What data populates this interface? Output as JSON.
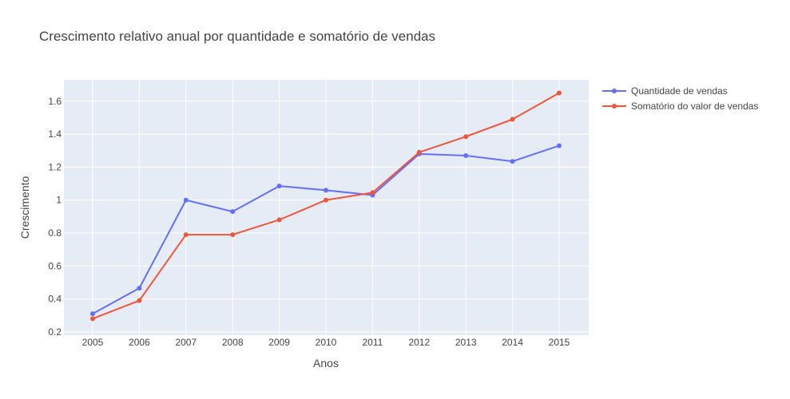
{
  "chart_data": {
    "type": "line",
    "title": "Crescimento relativo anual por quantidade e somatório de vendas",
    "xlabel": "Anos",
    "ylabel": "Crescimento",
    "x": [
      "2005",
      "2006",
      "2007",
      "2008",
      "2009",
      "2010",
      "2011",
      "2012",
      "2013",
      "2014",
      "2015"
    ],
    "ylim": [
      0.18,
      1.73
    ],
    "yticks": [
      0.2,
      0.4,
      0.6,
      0.8,
      1,
      1.2,
      1.4,
      1.6
    ],
    "ytick_labels": [
      "0.2",
      "0.4",
      "0.6",
      "0.8",
      "1",
      "1.2",
      "1.4",
      "1.6"
    ],
    "grid": true,
    "legend_position": "top-right",
    "series": [
      {
        "name": "Quantidade de vendas",
        "color": "#636efa",
        "values": [
          0.31,
          0.465,
          1.0,
          0.93,
          1.085,
          1.06,
          1.03,
          1.28,
          1.27,
          1.235,
          1.33
        ]
      },
      {
        "name": "Somatório do valor de vendas",
        "color": "#ef553b",
        "values": [
          0.28,
          0.39,
          0.79,
          0.79,
          0.88,
          1.0,
          1.045,
          1.29,
          1.385,
          1.49,
          1.65
        ]
      }
    ]
  }
}
